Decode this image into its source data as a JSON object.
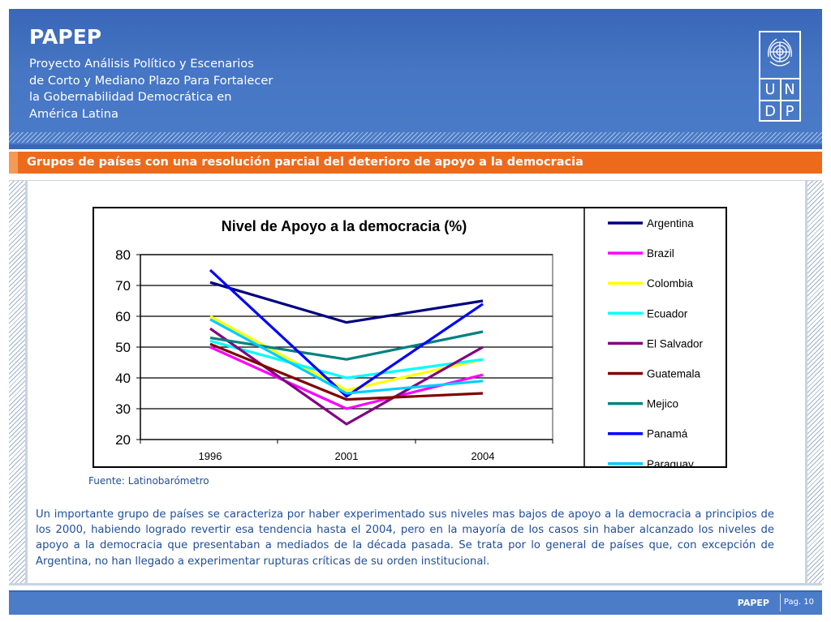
{
  "header": {
    "brand": "PAPEP",
    "subtitle": "Proyecto Análisis Político y Escenarios\nde Corto y Mediano Plazo Para Fortalecer\nla Gobernabilidad Democrática en\nAmérica Latina",
    "logo": {
      "cells": [
        "U",
        "N",
        "D",
        "P"
      ],
      "icon": "un-emblem-icon"
    }
  },
  "section_title": "Grupos de países con una resolución parcial del deterioro de apoyo a la democracia",
  "chart_data": {
    "type": "line",
    "title": "Nivel de Apoyo a la democracia (%)",
    "xlabel": "",
    "ylabel": "",
    "categories": [
      "1996",
      "2001",
      "2004"
    ],
    "ylim": [
      20,
      80
    ],
    "yticks": [
      20,
      30,
      40,
      50,
      60,
      70,
      80
    ],
    "grid": true,
    "legend_position": "right",
    "series": [
      {
        "name": "Argentina",
        "color": "#000080",
        "values": [
          71,
          58,
          65
        ]
      },
      {
        "name": "Brazil",
        "color": "#ff00ff",
        "values": [
          50,
          30,
          41
        ]
      },
      {
        "name": "Colombia",
        "color": "#ffff00",
        "values": [
          60,
          36,
          46
        ]
      },
      {
        "name": "Ecuador",
        "color": "#00ffff",
        "values": [
          52,
          40,
          46
        ]
      },
      {
        "name": "El Salvador",
        "color": "#800080",
        "values": [
          56,
          25,
          50
        ]
      },
      {
        "name": "Guatemala",
        "color": "#800000",
        "values": [
          51,
          33,
          35
        ]
      },
      {
        "name": "Mejico",
        "color": "#008080",
        "values": [
          53,
          46,
          55
        ]
      },
      {
        "name": "Panamá",
        "color": "#0000ff",
        "values": [
          75,
          34,
          64
        ]
      },
      {
        "name": "Paraguay",
        "color": "#00ccff",
        "values": [
          59,
          35,
          39
        ]
      }
    ]
  },
  "source_text": "Fuente:  Latinobarómetro",
  "paragraph": "Un importante grupo de países se caracteriza por haber experimentado sus niveles mas bajos de apoyo a la democracia a principios de los 2000, habiendo logrado revertir esa tendencia hasta el 2004, pero en la mayoría de los casos sin haber alcanzado los niveles de apoyo a la democracia que presentaban a mediados de la década pasada. Se trata por lo general de países que, con excepción de Argentina, no han llegado a experimentar rupturas críticas de su orden institucional.",
  "footer": {
    "brand": "PAPEP",
    "page": "Pag. 10"
  }
}
